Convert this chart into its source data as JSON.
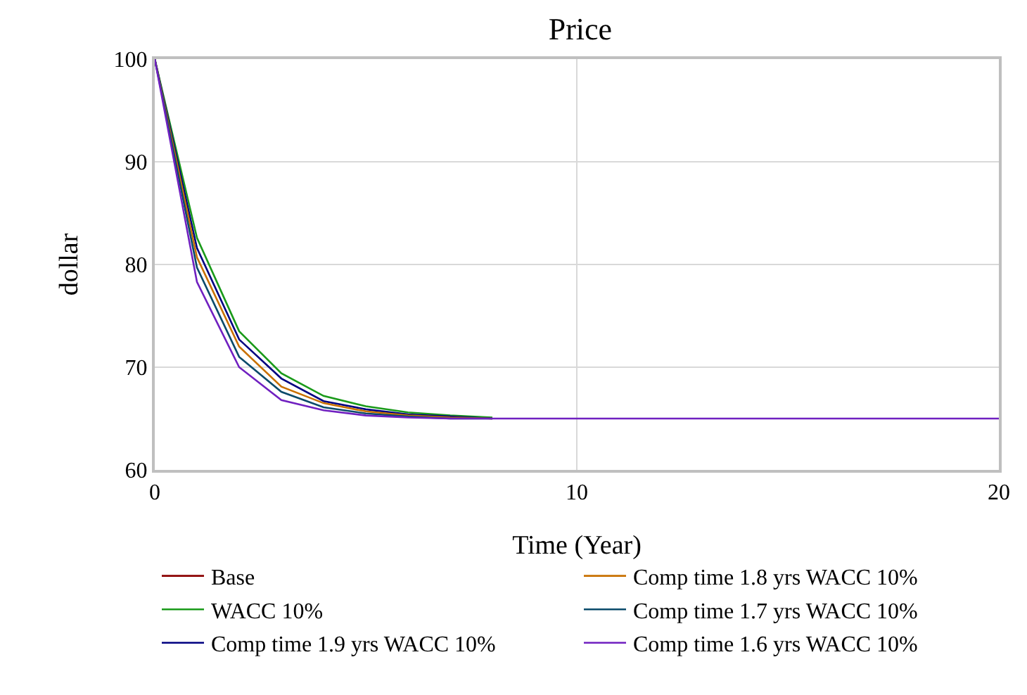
{
  "chart_data": {
    "type": "line",
    "title": "Price",
    "xlabel": "Time (Year)",
    "ylabel": "dollar",
    "x": [
      0,
      1,
      2,
      3,
      4,
      5,
      6,
      7,
      8,
      9,
      10,
      11,
      12,
      13,
      14,
      15,
      16,
      17,
      18,
      19,
      20
    ],
    "series": [
      {
        "name": "Base",
        "color": "#8b0000",
        "values": [
          null,
          null,
          null,
          null,
          null,
          null,
          null,
          null,
          null,
          null,
          null,
          null,
          null,
          null,
          null,
          null,
          null,
          null,
          null,
          null,
          null
        ]
      },
      {
        "name": "WACC 10%",
        "color": "#1a9a1a",
        "values": [
          100,
          82.6,
          73.5,
          69.4,
          67.2,
          66.2,
          65.6,
          65.3,
          65.1,
          null,
          null,
          null,
          null,
          null,
          null,
          null,
          null,
          null,
          null,
          null,
          null
        ]
      },
      {
        "name": "Comp time 1.9 yrs WACC 10%",
        "color": "#000080",
        "values": [
          100,
          81.6,
          72.7,
          68.9,
          66.7,
          65.9,
          65.4,
          65.2,
          65,
          null,
          null,
          null,
          null,
          null,
          null,
          null,
          null,
          null,
          null,
          null,
          null
        ]
      },
      {
        "name": "Comp time 1.8 yrs WACC 10%",
        "color": "#c87000",
        "values": [
          100,
          80.7,
          72.0,
          68.1,
          66.5,
          65.7,
          65.3,
          65.1,
          65,
          null,
          null,
          null,
          null,
          null,
          null,
          null,
          null,
          null,
          null,
          null,
          null
        ]
      },
      {
        "name": "Comp time 1.7 yrs WACC 10%",
        "color": "#0a4a6a",
        "values": [
          100,
          79.7,
          71.0,
          67.6,
          66.1,
          65.5,
          65.2,
          65.0,
          65,
          null,
          null,
          null,
          null,
          null,
          null,
          null,
          null,
          null,
          null,
          null,
          null
        ]
      },
      {
        "name": "Comp time 1.6 yrs WACC 10%",
        "color": "#7020c0",
        "values": [
          100,
          78.3,
          70.0,
          66.8,
          65.8,
          65.3,
          65.1,
          65,
          65,
          65,
          65,
          65,
          65,
          65,
          65,
          65,
          65,
          65,
          65,
          65,
          65
        ]
      }
    ],
    "xlim": [
      0,
      20
    ],
    "xticks": [
      0,
      10,
      20
    ],
    "ylim": [
      60,
      100
    ],
    "yticks": [
      60,
      70,
      80,
      90,
      100
    ],
    "grid": true,
    "legend": "bottom",
    "marker": "none",
    "line_style": "solid"
  }
}
